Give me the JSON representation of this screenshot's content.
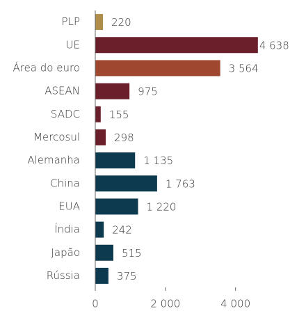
{
  "chart_data": {
    "type": "bar",
    "orientation": "horizontal",
    "categories": [
      "PLP",
      "UE",
      "Área do euro",
      "ASEAN",
      "SADC",
      "Mercosul",
      "Alemanha",
      "China",
      "EUA",
      "Índia",
      "Japão",
      "Rússia"
    ],
    "values": [
      220,
      4638,
      3564,
      975,
      155,
      298,
      1135,
      1763,
      1220,
      242,
      515,
      375
    ],
    "value_labels": [
      "220",
      "4 638",
      "3 564",
      "975",
      "155",
      "298",
      "1 135",
      "1 763",
      "1 220",
      "242",
      "515",
      "375"
    ],
    "colors": [
      "#b08d48",
      "#6b1f2a",
      "#a0472f",
      "#6b1f2a",
      "#6b1f2a",
      "#6b1f2a",
      "#0d3a4f",
      "#0d3a4f",
      "#0d3a4f",
      "#0d3a4f",
      "#0d3a4f",
      "#0d3a4f"
    ],
    "xlim": [
      0,
      4800
    ],
    "xticks": [
      0,
      {
        "value": 2000,
        "label": "2 000"
      },
      {
        "value": 4000,
        "label": "4 000"
      }
    ],
    "grid": false
  }
}
